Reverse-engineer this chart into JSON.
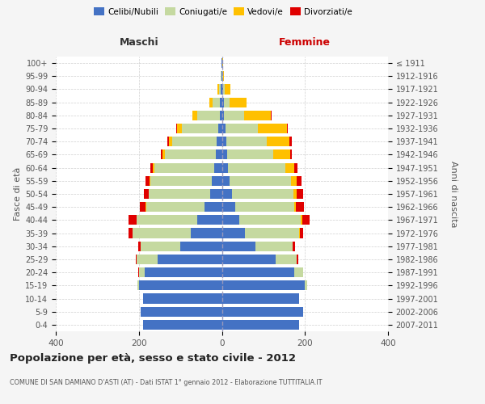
{
  "age_groups": [
    "0-4",
    "5-9",
    "10-14",
    "15-19",
    "20-24",
    "25-29",
    "30-34",
    "35-39",
    "40-44",
    "45-49",
    "50-54",
    "55-59",
    "60-64",
    "65-69",
    "70-74",
    "75-79",
    "80-84",
    "85-89",
    "90-94",
    "95-99",
    "100+"
  ],
  "birth_years": [
    "2007-2011",
    "2002-2006",
    "1997-2001",
    "1992-1996",
    "1987-1991",
    "1982-1986",
    "1977-1981",
    "1972-1976",
    "1967-1971",
    "1962-1966",
    "1957-1961",
    "1952-1956",
    "1947-1951",
    "1942-1946",
    "1937-1941",
    "1932-1936",
    "1927-1931",
    "1922-1926",
    "1917-1921",
    "1912-1916",
    "≤ 1911"
  ],
  "male_celibe": [
    190,
    195,
    190,
    200,
    185,
    155,
    100,
    75,
    60,
    42,
    28,
    25,
    18,
    15,
    12,
    8,
    5,
    4,
    2,
    1,
    1
  ],
  "male_coniugato": [
    0,
    0,
    0,
    3,
    15,
    50,
    95,
    140,
    145,
    140,
    148,
    148,
    145,
    122,
    108,
    88,
    55,
    18,
    5,
    1,
    0
  ],
  "male_vedovo": [
    0,
    0,
    0,
    0,
    0,
    0,
    1,
    1,
    1,
    1,
    1,
    2,
    4,
    6,
    8,
    12,
    12,
    8,
    3,
    1,
    0
  ],
  "male_divorziato": [
    0,
    0,
    0,
    0,
    1,
    3,
    5,
    8,
    18,
    15,
    10,
    8,
    5,
    3,
    3,
    2,
    0,
    0,
    0,
    0,
    0
  ],
  "female_nubile": [
    185,
    195,
    185,
    200,
    175,
    130,
    80,
    55,
    42,
    32,
    25,
    18,
    14,
    12,
    10,
    8,
    5,
    4,
    2,
    1,
    1
  ],
  "female_coniugata": [
    0,
    0,
    0,
    5,
    20,
    50,
    90,
    130,
    148,
    142,
    148,
    148,
    138,
    112,
    98,
    78,
    48,
    14,
    4,
    1,
    0
  ],
  "female_vedova": [
    0,
    0,
    0,
    0,
    0,
    1,
    1,
    2,
    3,
    5,
    8,
    14,
    22,
    40,
    55,
    70,
    65,
    42,
    14,
    3,
    1
  ],
  "female_divorziata": [
    0,
    0,
    0,
    0,
    1,
    2,
    5,
    8,
    18,
    18,
    15,
    12,
    8,
    5,
    5,
    3,
    2,
    0,
    0,
    0,
    0
  ],
  "colors_celibe": "#4472c4",
  "colors_coniugato": "#c5d9a0",
  "colors_vedovo": "#ffc000",
  "colors_divorziato": "#e00000",
  "legend_labels": [
    "Celibi/Nubili",
    "Coniugati/e",
    "Vedovi/e",
    "Divorziati/e"
  ],
  "xlim": 400,
  "title": "Popolazione per età, sesso e stato civile - 2012",
  "subtitle": "COMUNE DI SAN DAMIANO D'ASTI (AT) - Dati ISTAT 1° gennaio 2012 - Elaborazione TUTTITALIA.IT",
  "ylabel_left": "Fasce di età",
  "ylabel_right": "Anni di nascita",
  "label_male": "Maschi",
  "label_female": "Femmine",
  "bg_color": "#f5f5f5",
  "plot_bg": "#ffffff",
  "grid_color": "#cccccc"
}
